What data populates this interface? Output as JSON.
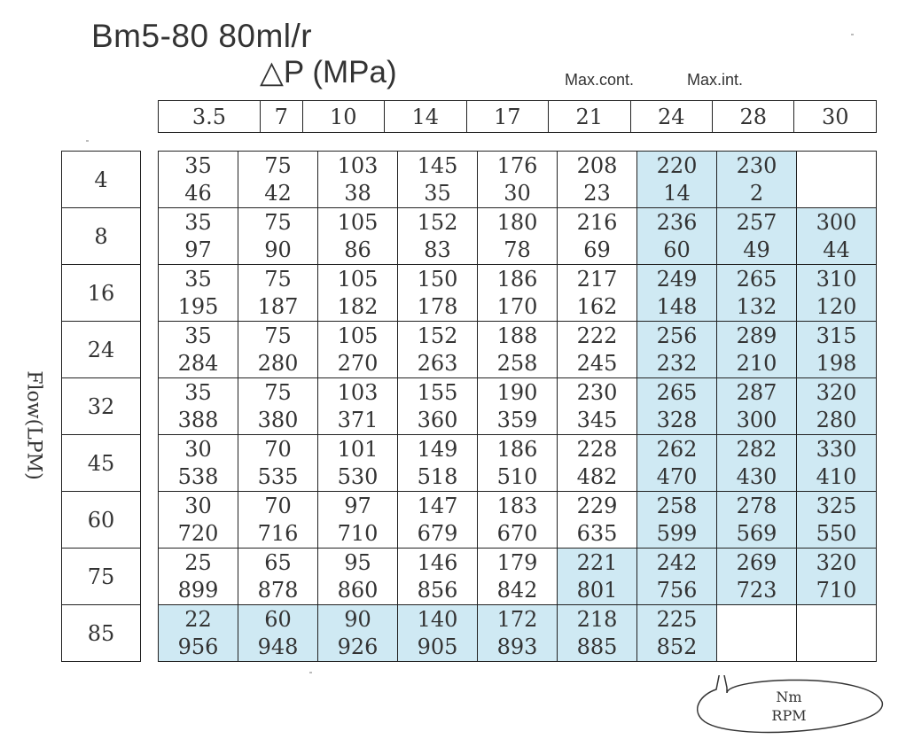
{
  "title": "Bm5-80  80ml/r",
  "pressure_label": "△P  (MPa)",
  "notes": {
    "max_cont": "Max.cont.",
    "max_int": "Max.int."
  },
  "pressures": [
    "3.5",
    "7",
    "10",
    "14",
    "17",
    "21",
    "24",
    "28",
    "30"
  ],
  "flow_axis_label": "Flow(LPM)",
  "flows": [
    "4",
    "8",
    "16",
    "24",
    "32",
    "45",
    "60",
    "75",
    "85"
  ],
  "rows": [
    [
      [
        "35",
        "46"
      ],
      [
        "75",
        "42"
      ],
      [
        "103",
        "38"
      ],
      [
        "145",
        "35"
      ],
      [
        "176",
        "30"
      ],
      [
        "208",
        "23"
      ],
      [
        "220",
        "14"
      ],
      [
        "230",
        "2"
      ],
      null
    ],
    [
      [
        "35",
        "97"
      ],
      [
        "75",
        "90"
      ],
      [
        "105",
        "86"
      ],
      [
        "152",
        "83"
      ],
      [
        "180",
        "78"
      ],
      [
        "216",
        "69"
      ],
      [
        "236",
        "60"
      ],
      [
        "257",
        "49"
      ],
      [
        "300",
        "44"
      ]
    ],
    [
      [
        "35",
        "195"
      ],
      [
        "75",
        "187"
      ],
      [
        "105",
        "182"
      ],
      [
        "150",
        "178"
      ],
      [
        "186",
        "170"
      ],
      [
        "217",
        "162"
      ],
      [
        "249",
        "148"
      ],
      [
        "265",
        "132"
      ],
      [
        "310",
        "120"
      ]
    ],
    [
      [
        "35",
        "284"
      ],
      [
        "75",
        "280"
      ],
      [
        "105",
        "270"
      ],
      [
        "152",
        "263"
      ],
      [
        "188",
        "258"
      ],
      [
        "222",
        "245"
      ],
      [
        "256",
        "232"
      ],
      [
        "289",
        "210"
      ],
      [
        "315",
        "198"
      ]
    ],
    [
      [
        "35",
        "388"
      ],
      [
        "75",
        "380"
      ],
      [
        "103",
        "371"
      ],
      [
        "155",
        "360"
      ],
      [
        "190",
        "359"
      ],
      [
        "230",
        "345"
      ],
      [
        "265",
        "328"
      ],
      [
        "287",
        "300"
      ],
      [
        "320",
        "280"
      ]
    ],
    [
      [
        "30",
        "538"
      ],
      [
        "70",
        "535"
      ],
      [
        "101",
        "530"
      ],
      [
        "149",
        "518"
      ],
      [
        "186",
        "510"
      ],
      [
        "228",
        "482"
      ],
      [
        "262",
        "470"
      ],
      [
        "282",
        "430"
      ],
      [
        "330",
        "410"
      ]
    ],
    [
      [
        "30",
        "720"
      ],
      [
        "70",
        "716"
      ],
      [
        "97",
        "710"
      ],
      [
        "147",
        "679"
      ],
      [
        "183",
        "670"
      ],
      [
        "229",
        "635"
      ],
      [
        "258",
        "599"
      ],
      [
        "278",
        "569"
      ],
      [
        "325",
        "550"
      ]
    ],
    [
      [
        "25",
        "899"
      ],
      [
        "65",
        "878"
      ],
      [
        "95",
        "860"
      ],
      [
        "146",
        "856"
      ],
      [
        "179",
        "842"
      ],
      [
        "221",
        "801"
      ],
      [
        "242",
        "756"
      ],
      [
        "269",
        "723"
      ],
      [
        "320",
        "710"
      ]
    ],
    [
      [
        "22",
        "956"
      ],
      [
        "60",
        "948"
      ],
      [
        "90",
        "926"
      ],
      [
        "140",
        "905"
      ],
      [
        "172",
        "893"
      ],
      [
        "218",
        "885"
      ],
      [
        "225",
        "852"
      ],
      null,
      null
    ]
  ],
  "highlight": [
    [
      0,
      0,
      0,
      0,
      0,
      0,
      1,
      1,
      0
    ],
    [
      0,
      0,
      0,
      0,
      0,
      0,
      1,
      1,
      1
    ],
    [
      0,
      0,
      0,
      0,
      0,
      0,
      1,
      1,
      1
    ],
    [
      0,
      0,
      0,
      0,
      0,
      0,
      1,
      1,
      1
    ],
    [
      0,
      0,
      0,
      0,
      0,
      0,
      1,
      1,
      1
    ],
    [
      0,
      0,
      0,
      0,
      0,
      0,
      1,
      1,
      1
    ],
    [
      0,
      0,
      0,
      0,
      0,
      0,
      1,
      1,
      1
    ],
    [
      0,
      0,
      0,
      0,
      0,
      1,
      1,
      1,
      1
    ],
    [
      1,
      1,
      1,
      1,
      1,
      1,
      1,
      0,
      0
    ]
  ],
  "colors": {
    "highlight": "#cfe9f3",
    "grid": "#222222"
  },
  "callout": {
    "line1": "Nm",
    "line2": "RPM"
  }
}
